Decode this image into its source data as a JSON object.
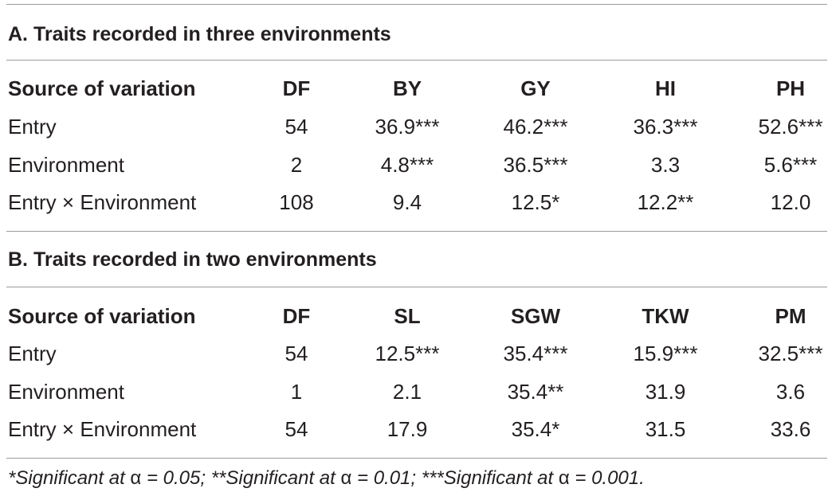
{
  "sectionA": {
    "title": "A. Traits recorded in three environments",
    "header": [
      "Source of variation",
      "DF",
      "BY",
      "GY",
      "HI",
      "PH"
    ],
    "rows": [
      [
        "Entry",
        "54",
        "36.9***",
        "46.2***",
        "36.3***",
        "52.6***"
      ],
      [
        "Environment",
        "2",
        "4.8***",
        "36.5***",
        "3.3",
        "5.6***"
      ],
      [
        "Entry × Environment",
        "108",
        "9.4",
        "12.5*",
        "12.2**",
        "12.0"
      ]
    ]
  },
  "sectionB": {
    "title": "B. Traits recorded in two environments",
    "header": [
      "Source of variation",
      "DF",
      "SL",
      "SGW",
      "TKW",
      "PM"
    ],
    "rows": [
      [
        "Entry",
        "54",
        "12.5***",
        "35.4***",
        "15.9***",
        "32.5***"
      ],
      [
        "Environment",
        "1",
        "2.1",
        "35.4**",
        "31.9",
        "3.6"
      ],
      [
        "Entry × Environment",
        "54",
        "17.9",
        "35.4*",
        "31.5",
        "33.6"
      ]
    ]
  },
  "footnote": {
    "part1": "*Significant at ",
    "alpha1": "α",
    "part2": " = 0.05; **Significant at ",
    "alpha2": "α",
    "part3": " = 0.01; ***Significant at ",
    "alpha3": "α",
    "part4": " = 0.001."
  }
}
